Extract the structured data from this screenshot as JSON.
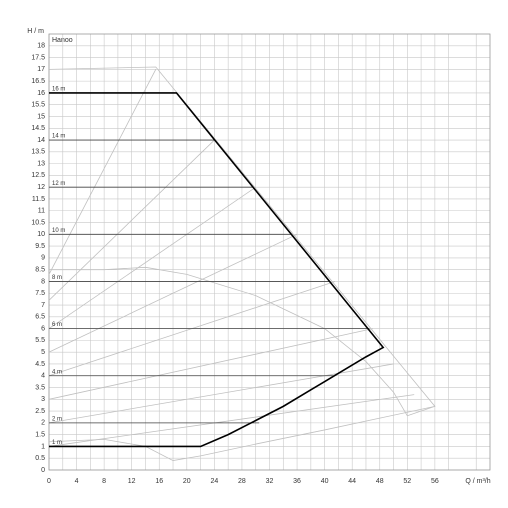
{
  "chart_data": {
    "type": "line",
    "title": "Hanoo",
    "y_label": "H / m",
    "x_label": "Q / m³/h",
    "xlim": [
      0,
      64
    ],
    "ylim": [
      0,
      18.5
    ],
    "xticks": [
      0,
      4,
      8,
      12,
      16,
      20,
      24,
      28,
      32,
      36,
      40,
      44,
      48,
      52,
      56
    ],
    "x_minor": [
      2,
      6,
      10,
      14,
      18,
      22,
      26,
      30,
      34,
      38,
      42,
      46,
      50,
      54,
      58,
      62
    ],
    "yticks": [
      0,
      0.5,
      1,
      1.5,
      2,
      2.5,
      3,
      3.5,
      4,
      4.5,
      5,
      5.5,
      6,
      6.5,
      7,
      7.5,
      8,
      8.5,
      9,
      9.5,
      10,
      10.5,
      11,
      11.5,
      12,
      12.5,
      13,
      13.5,
      14,
      14.5,
      15,
      15.5,
      16,
      16.5,
      17,
      17.5,
      18
    ],
    "grid": true,
    "envelope": {
      "color": "#000000",
      "x": [
        0,
        22,
        26,
        30,
        34,
        38,
        42,
        46,
        48.5,
        18.5,
        0
      ],
      "y": [
        1,
        1,
        1.5,
        2.1,
        2.7,
        3.4,
        4.1,
        4.8,
        5.2,
        16,
        16
      ]
    },
    "levels": [
      {
        "label": "1 m",
        "value": 1,
        "xend": 22
      },
      {
        "label": "2 m",
        "value": 2,
        "xend": 30.5
      },
      {
        "label": "4 m",
        "value": 4,
        "xend": 41.5
      },
      {
        "label": "6 m",
        "value": 6,
        "xend": 46.5
      },
      {
        "label": "8 m",
        "value": 8,
        "xend": 40.7
      },
      {
        "label": "10 m",
        "value": 10,
        "xend": 35.2
      },
      {
        "label": "12 m",
        "value": 12,
        "xend": 29.6
      },
      {
        "label": "14 m",
        "value": 14,
        "xend": 24.1
      },
      {
        "label": "16 m",
        "value": 16,
        "xend": 18.5
      }
    ],
    "level_color": "#444444",
    "curves": [
      {
        "color": "#c0c0c0",
        "x": [
          0,
          15.5,
          56,
          52
        ],
        "y": [
          17,
          17.1,
          2.7,
          2.3
        ]
      },
      {
        "color": "#c0c0c0",
        "x": [
          0,
          8,
          14,
          18,
          22,
          30,
          40,
          48,
          56
        ],
        "y": [
          1.2,
          1.3,
          1,
          0.4,
          0.6,
          1.1,
          1.7,
          2.2,
          2.7
        ]
      },
      {
        "color": "#c0c0c0",
        "x": [
          0,
          8,
          14,
          20,
          30,
          40,
          46,
          50,
          52
        ],
        "y": [
          8.5,
          8.5,
          8.6,
          8.3,
          7.4,
          6,
          4.6,
          3.3,
          2.3
        ]
      },
      {
        "color": "#c0c0c0",
        "x": [
          0,
          15.5
        ],
        "y": [
          8.3,
          17
        ]
      },
      {
        "color": "#c0c0c0",
        "x": [
          0,
          24
        ],
        "y": [
          7.2,
          14
        ]
      },
      {
        "color": "#c0c0c0",
        "x": [
          0,
          30
        ],
        "y": [
          6,
          12
        ]
      },
      {
        "color": "#c0c0c0",
        "x": [
          0,
          36
        ],
        "y": [
          5,
          10
        ]
      },
      {
        "color": "#c0c0c0",
        "x": [
          0,
          41.5
        ],
        "y": [
          4,
          8
        ]
      },
      {
        "color": "#c0c0c0",
        "x": [
          0,
          47
        ],
        "y": [
          3,
          6
        ]
      },
      {
        "color": "#c0c0c0",
        "x": [
          0,
          50
        ],
        "y": [
          2,
          4.5
        ]
      },
      {
        "color": "#c0c0c0",
        "x": [
          0,
          53
        ],
        "y": [
          1,
          3.2
        ]
      }
    ]
  }
}
